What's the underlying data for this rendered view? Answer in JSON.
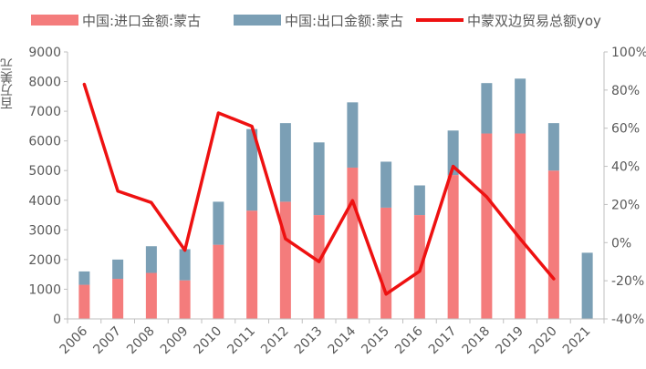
{
  "legend": {
    "import_label": "中国:进口金额:蒙古",
    "export_label": "中国:出口金额:蒙古",
    "yoy_label": "中蒙双边贸易总额yoy"
  },
  "colors": {
    "import": "#f47c7c",
    "export": "#7b9fb5",
    "yoy": "#ee1111",
    "axis": "#bfbfbf",
    "text": "#595959"
  },
  "chart_data": {
    "type": "bar",
    "stacked": true,
    "ylabel": "百万美元",
    "left_axis": {
      "min": 0,
      "max": 9000,
      "step": 1000,
      "ticks": [
        "0",
        "1000",
        "2000",
        "3000",
        "4000",
        "5000",
        "6000",
        "7000",
        "8000",
        "9000"
      ]
    },
    "right_axis": {
      "min": -40,
      "max": 100,
      "step": 20,
      "ticks": [
        "-40%",
        "-20%",
        "0%",
        "20%",
        "40%",
        "60%",
        "80%",
        "100%"
      ]
    },
    "categories": [
      "2006",
      "2007",
      "2008",
      "2009",
      "2010",
      "2011",
      "2012",
      "2013",
      "2014",
      "2015",
      "2016",
      "2017",
      "2018",
      "2019",
      "2020",
      "2021"
    ],
    "series": [
      {
        "name": "中国:进口金额:蒙古",
        "kind": "bar",
        "axis": "left",
        "values": [
          1150,
          1350,
          1550,
          1300,
          2500,
          3650,
          3950,
          3500,
          5100,
          3750,
          3500,
          4850,
          6250,
          6250,
          5000,
          0
        ]
      },
      {
        "name": "中国:出口金额:蒙古",
        "kind": "bar",
        "axis": "left",
        "values": [
          450,
          650,
          900,
          1050,
          1450,
          2750,
          2650,
          2450,
          2200,
          1550,
          1000,
          1500,
          1700,
          1850,
          1600,
          2230
        ]
      },
      {
        "name": "中蒙双边贸易总额yoy",
        "kind": "line",
        "axis": "right",
        "values": [
          83,
          27,
          21,
          -4,
          68,
          61,
          2,
          -10,
          22,
          -27,
          -15,
          40,
          24,
          2,
          -19,
          null
        ]
      }
    ],
    "grid": false,
    "legend_position": "top"
  }
}
